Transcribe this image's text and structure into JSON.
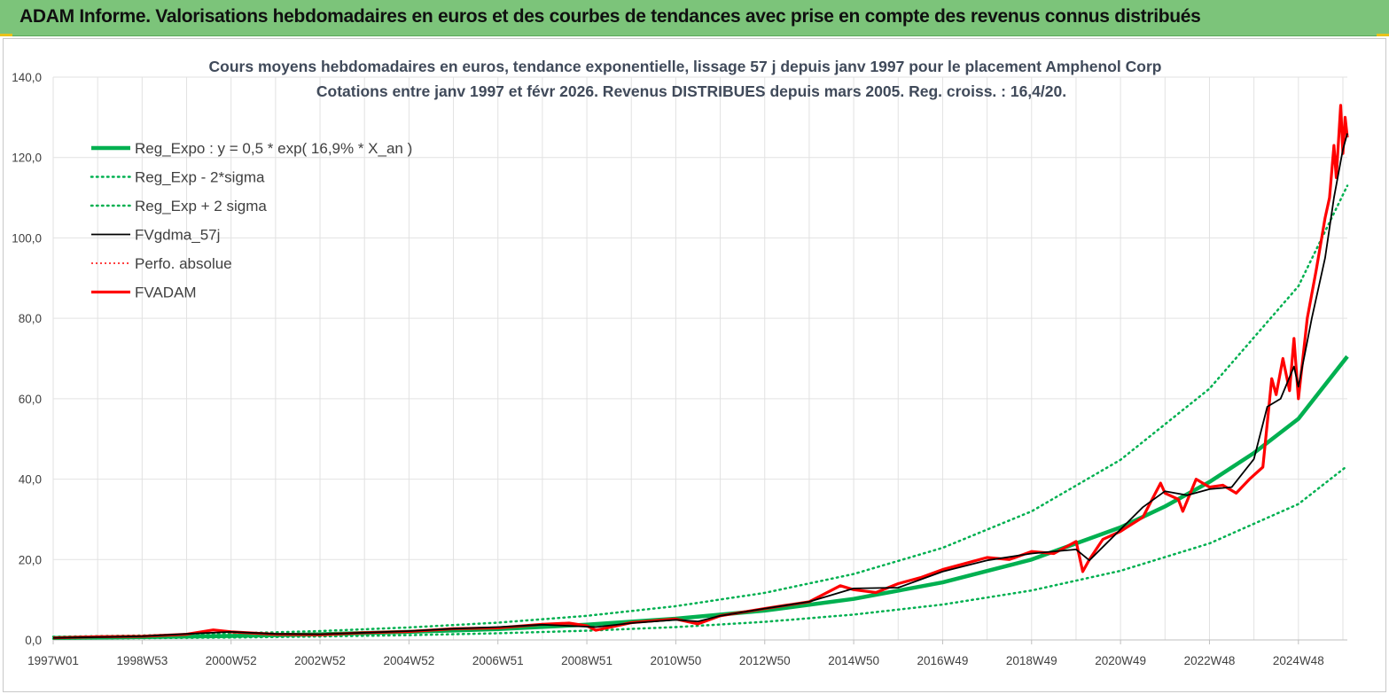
{
  "banner": {
    "title": "ADAM Informe. Valorisations hebdomadaires en euros et des courbes de tendances avec prise en compte des revenus connus distribués"
  },
  "colors": {
    "banner": "#7cc47a",
    "reg_expo": "#00b050",
    "fvgdma": "#000000",
    "perfo": "#ff0000",
    "fvadam": "#ff0000"
  },
  "chart_data": {
    "type": "line",
    "title_line1": "Cours moyens hebdomadaires en euros, tendance exponentielle, lissage 57 j depuis janv 1997 pour le placement Amphenol Corp",
    "title_line2": "Cotations entre janv 1997 et févr 2026. Revenus DISTRIBUES depuis mars 2005. Reg. croiss. : 16,4/20.",
    "ylim": [
      0,
      140
    ],
    "xlim": [
      1997.0,
      2026.1
    ],
    "y_ticks": [
      "0,0",
      "20,0",
      "40,0",
      "60,0",
      "80,0",
      "100,0",
      "120,0",
      "140,0"
    ],
    "x_ticks": [
      {
        "label": "1997W01",
        "x": 1997.0
      },
      {
        "label": "1998W53",
        "x": 1999.0
      },
      {
        "label": "2000W52",
        "x": 2001.0
      },
      {
        "label": "2002W52",
        "x": 2003.0
      },
      {
        "label": "2004W52",
        "x": 2005.0
      },
      {
        "label": "2006W51",
        "x": 2007.0
      },
      {
        "label": "2008W51",
        "x": 2009.0
      },
      {
        "label": "2010W50",
        "x": 2011.0
      },
      {
        "label": "2012W50",
        "x": 2013.0
      },
      {
        "label": "2014W50",
        "x": 2015.0
      },
      {
        "label": "2016W49",
        "x": 2017.0
      },
      {
        "label": "2018W49",
        "x": 2019.0
      },
      {
        "label": "2020W49",
        "x": 2021.0
      },
      {
        "label": "2022W48",
        "x": 2023.0
      },
      {
        "label": "2024W48",
        "x": 2025.0
      }
    ],
    "legend": [
      {
        "name": "Reg_Expo : y = 0,5 * exp( 16,9% *  X_an )",
        "style": "thick-green"
      },
      {
        "name": "Reg_Exp - 2*sigma",
        "style": "dotted-green"
      },
      {
        "name": "Reg_Exp + 2 sigma",
        "style": "dotted-green"
      },
      {
        "name": "FVgdma_57j",
        "style": "solid-black"
      },
      {
        "name": "Perfo. absolue",
        "style": "dotted-red"
      },
      {
        "name": "FVADAM",
        "style": "thick-red"
      }
    ],
    "series": [
      {
        "name": "Reg_Expo : y = 0,5 * exp( 16,9% *  X_an )",
        "x": [
          1997.0,
          1999.0,
          2001.0,
          2003.0,
          2005.0,
          2007.0,
          2009.0,
          2011.0,
          2013.0,
          2015.0,
          2017.0,
          2019.0,
          2021.0,
          2022.0,
          2023.0,
          2024.0,
          2025.0,
          2026.1
        ],
        "y": [
          0.5,
          0.7,
          1.0,
          1.4,
          2.0,
          2.7,
          3.8,
          5.3,
          7.3,
          10.2,
          14.3,
          20.0,
          28.0,
          33.2,
          39.3,
          46.5,
          55.0,
          70.5
        ]
      },
      {
        "name": "Reg_Exp - 2*sigma",
        "x": [
          1997.0,
          1999.0,
          2001.0,
          2003.0,
          2005.0,
          2007.0,
          2009.0,
          2011.0,
          2013.0,
          2015.0,
          2017.0,
          2019.0,
          2021.0,
          2023.0,
          2025.0,
          2026.1
        ],
        "y": [
          0.3,
          0.43,
          0.6,
          0.85,
          1.2,
          1.65,
          2.3,
          3.2,
          4.5,
          6.3,
          8.8,
          12.3,
          17.2,
          24.0,
          33.8,
          43.3
        ]
      },
      {
        "name": "Reg_Exp + 2 sigma",
        "x": [
          1997.0,
          1999.0,
          2001.0,
          2003.0,
          2005.0,
          2007.0,
          2009.0,
          2011.0,
          2013.0,
          2015.0,
          2017.0,
          2019.0,
          2021.0,
          2023.0,
          2025.0,
          2026.1
        ],
        "y": [
          0.8,
          1.1,
          1.6,
          2.2,
          3.1,
          4.3,
          6.0,
          8.4,
          11.7,
          16.4,
          22.9,
          32.0,
          44.8,
          62.5,
          88.0,
          113.0
        ]
      },
      {
        "name": "FVgdma_57j",
        "x": [
          1997.0,
          1998.0,
          1999.0,
          2000.0,
          2001.0,
          2002.0,
          2003.0,
          2004.0,
          2005.0,
          2006.0,
          2007.0,
          2008.0,
          2008.6,
          2009.2,
          2010.0,
          2011.0,
          2011.5,
          2012.0,
          2013.0,
          2014.0,
          2015.0,
          2016.0,
          2017.0,
          2018.0,
          2019.0,
          2020.0,
          2020.3,
          2021.0,
          2021.5,
          2022.0,
          2022.5,
          2023.0,
          2023.5,
          2024.0,
          2024.3,
          2024.6,
          2024.9,
          2025.0,
          2025.3,
          2025.6,
          2025.8,
          2026.0,
          2026.1
        ],
        "y": [
          0.5,
          0.7,
          0.9,
          1.5,
          2.0,
          1.5,
          1.4,
          1.8,
          2.2,
          2.8,
          3.2,
          3.8,
          3.5,
          3.2,
          4.2,
          5.0,
          4.6,
          6.0,
          7.8,
          9.5,
          12.8,
          13.0,
          17.0,
          19.8,
          21.5,
          22.5,
          19.8,
          27.5,
          33.0,
          37.0,
          36.0,
          37.5,
          38.0,
          45.0,
          58.0,
          60.0,
          68.0,
          63.0,
          80.0,
          95.0,
          110.0,
          122.0,
          126.0
        ]
      },
      {
        "name": "FVADAM",
        "x": [
          1997.0,
          1998.0,
          1999.0,
          2000.0,
          2000.6,
          2001.0,
          2002.0,
          2003.0,
          2004.0,
          2005.0,
          2006.0,
          2007.0,
          2008.0,
          2008.6,
          2009.0,
          2009.2,
          2010.0,
          2011.0,
          2011.5,
          2012.0,
          2013.0,
          2014.0,
          2014.7,
          2015.0,
          2015.5,
          2016.0,
          2016.5,
          2017.0,
          2017.5,
          2018.0,
          2018.5,
          2019.0,
          2019.5,
          2020.0,
          2020.15,
          2020.3,
          2020.6,
          2021.0,
          2021.5,
          2021.9,
          2022.0,
          2022.3,
          2022.4,
          2022.7,
          2023.0,
          2023.3,
          2023.6,
          2023.9,
          2024.2,
          2024.4,
          2024.5,
          2024.65,
          2024.8,
          2024.9,
          2025.0,
          2025.2,
          2025.4,
          2025.6,
          2025.7,
          2025.8,
          2025.85,
          2025.95,
          2026.0,
          2026.05,
          2026.1
        ],
        "y": [
          0.5,
          0.8,
          0.9,
          1.4,
          2.5,
          2.0,
          1.4,
          1.3,
          1.8,
          2.1,
          2.8,
          3.0,
          3.9,
          4.2,
          3.5,
          2.4,
          4.3,
          5.2,
          4.0,
          6.0,
          7.8,
          9.5,
          13.5,
          12.5,
          11.8,
          14.0,
          15.5,
          17.5,
          19.0,
          20.5,
          20.0,
          22.0,
          21.5,
          24.5,
          17.0,
          20.0,
          25.0,
          27.0,
          30.5,
          39.0,
          36.5,
          35.0,
          32.0,
          40.0,
          38.0,
          38.5,
          36.5,
          40.0,
          43.0,
          65.0,
          61.0,
          70.0,
          62.0,
          75.0,
          60.0,
          80.0,
          92.0,
          105.0,
          110.0,
          123.0,
          115.0,
          133.0,
          121.0,
          130.0,
          125.0
        ]
      }
    ]
  }
}
